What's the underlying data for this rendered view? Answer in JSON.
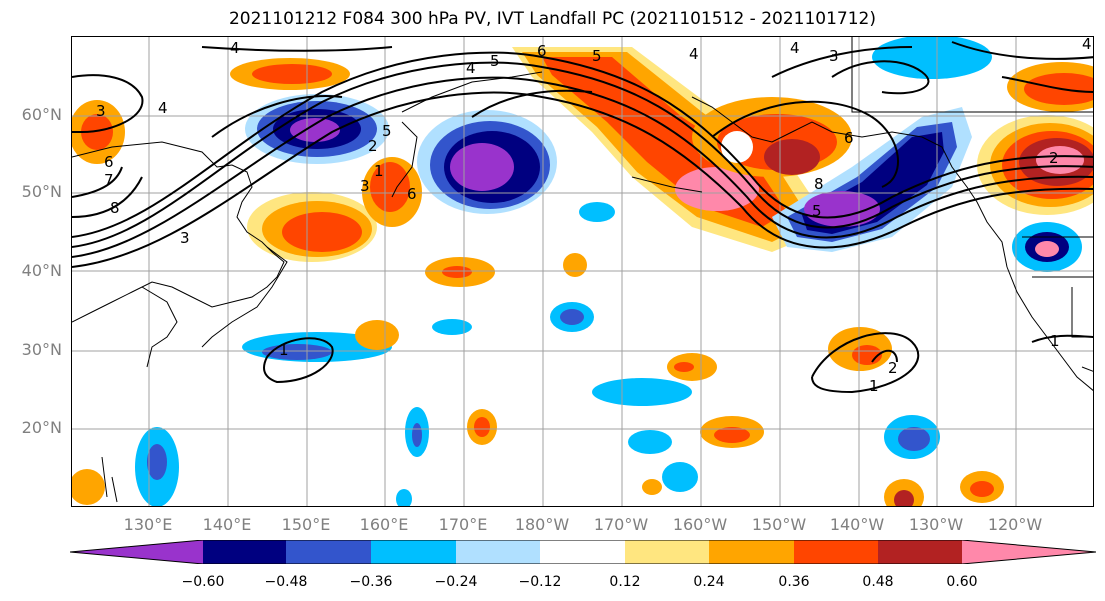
{
  "title": "2021101212 F084 300 hPa PV, IVT Landfall PC (2021101512 - 2021101712)",
  "lat_labels": [
    "60°N",
    "50°N",
    "40°N",
    "30°N",
    "20°N"
  ],
  "lon_labels": [
    "130°E",
    "140°E",
    "150°E",
    "160°E",
    "170°E",
    "180°W",
    "170°W",
    "160°W",
    "150°W",
    "140°W",
    "130°W",
    "120°W"
  ],
  "colorbar": {
    "ticks": [
      "−0.60",
      "−0.48",
      "−0.36",
      "−0.24",
      "−0.12",
      "0.12",
      "0.24",
      "0.36",
      "0.48",
      "0.60"
    ],
    "colors": [
      "#9933cc",
      "#000080",
      "#3355cc",
      "#00bfff",
      "#b0e0ff",
      "#ffffff",
      "#ffe680",
      "#ffa500",
      "#ff4500",
      "#b22222",
      "#ff88aa"
    ]
  },
  "contour_labels": [
    "4",
    "4",
    "4",
    "4",
    "3",
    "3",
    "4",
    "5",
    "6",
    "5",
    "4",
    "5",
    "3",
    "6",
    "7",
    "8",
    "1",
    "2",
    "3",
    "5",
    "6",
    "8",
    "6",
    "2",
    "1",
    "1",
    "2",
    "1"
  ],
  "palette": {
    "purple": "#9933cc",
    "navy": "#000080",
    "blue": "#3355cc",
    "cyan": "#00bfff",
    "lightblue": "#b0e0ff",
    "yellow": "#ffe680",
    "orange": "#ffa500",
    "redorange": "#ff4500",
    "darkred": "#b22222",
    "pink": "#ff88aa"
  }
}
